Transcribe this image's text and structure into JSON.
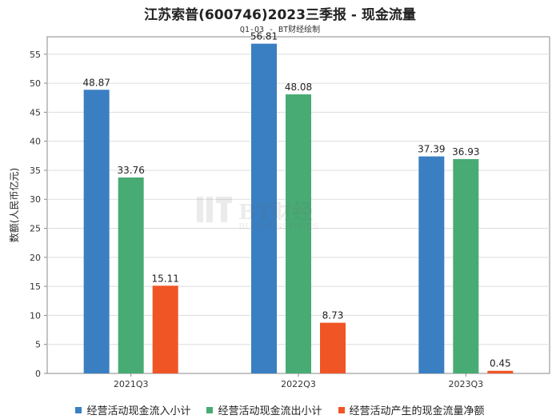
{
  "title": "江苏索普(600746)2023三季报 - 现金流量",
  "subtitle": "Q1-Q3 - BT财经绘制",
  "watermark": {
    "brand": "BT财经",
    "tagline": "BUSINESSTIMES"
  },
  "chart_data": {
    "type": "bar",
    "categories": [
      "2021Q3",
      "2022Q3",
      "2023Q3"
    ],
    "series": [
      {
        "name": "经营活动现金流入小计",
        "color": "#3a7fc1",
        "values": [
          48.87,
          56.81,
          37.39
        ]
      },
      {
        "name": "经营活动现金流出小计",
        "color": "#48ab74",
        "values": [
          33.76,
          48.08,
          36.93
        ]
      },
      {
        "name": "经营活动产生的现金流量净额",
        "color": "#f05525",
        "values": [
          15.11,
          8.73,
          0.45
        ]
      }
    ],
    "ylabel": "数额(人民币亿元)",
    "ylim": [
      0,
      58
    ],
    "yticks": [
      0,
      5,
      10,
      15,
      20,
      25,
      30,
      35,
      40,
      45,
      50,
      55
    ],
    "grid": true,
    "legend": "bottom"
  }
}
